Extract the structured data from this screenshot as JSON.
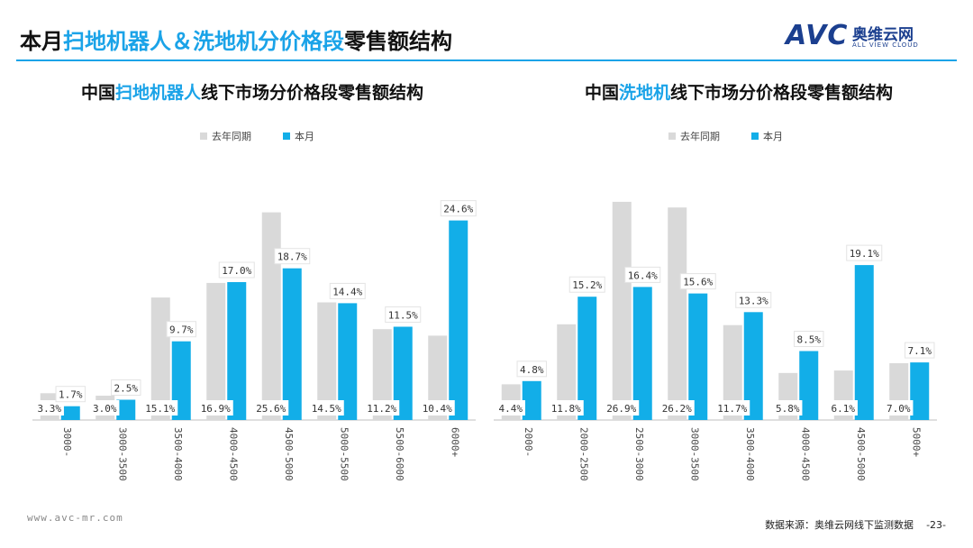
{
  "page": {
    "title_prefix": "本月",
    "title_highlight": "扫地机器人＆洗地机分价格段",
    "title_suffix": "零售额结构",
    "logo_mark": "AVC",
    "logo_cn": "奥维云网",
    "logo_en": "ALL VIEW CLOUD",
    "footer_url": "www.avc-mr.com",
    "footer_source": "数据来源：奥维云网线下监测数据",
    "page_number": "-23-"
  },
  "colors": {
    "accent": "#1aa3e8",
    "last_year": "#d9d9d9",
    "this_month": "#12aee8"
  },
  "chart_data": [
    {
      "type": "bar",
      "title_prefix": "中国",
      "title_highlight": "扫地机器人",
      "title_suffix": "线下市场分价格段零售额结构",
      "categories": [
        "3000-",
        "3000-3500",
        "3500-4000",
        "4000-4500",
        "4500-5000",
        "5000-5500",
        "5500-6000",
        "6000+"
      ],
      "series": [
        {
          "name": "去年同期",
          "values": [
            3.3,
            3.0,
            15.1,
            16.9,
            25.6,
            14.5,
            11.2,
            10.4
          ],
          "labels": [
            "3.3%",
            "3.0%",
            "15.1%",
            "16.9%",
            "25.6%",
            "14.5%",
            "11.2%",
            "10.4%"
          ]
        },
        {
          "name": "本月",
          "values": [
            1.7,
            2.5,
            9.7,
            17.0,
            18.7,
            14.4,
            11.5,
            24.6
          ],
          "labels": [
            "1.7%",
            "2.5%",
            "9.7%",
            "17.0%",
            "18.7%",
            "14.4%",
            "11.5%",
            "24.6%"
          ]
        }
      ],
      "ylim": [
        0,
        28
      ],
      "legend": "top-center"
    },
    {
      "type": "bar",
      "title_prefix": "中国",
      "title_highlight": "洗地机",
      "title_suffix": "线下市场分价格段零售额结构",
      "categories": [
        "2000-",
        "2000-2500",
        "2500-3000",
        "3000-3500",
        "3500-4000",
        "4000-4500",
        "4500-5000",
        "5000+"
      ],
      "series": [
        {
          "name": "去年同期",
          "values": [
            4.4,
            11.8,
            26.9,
            26.2,
            11.7,
            5.8,
            6.1,
            7.0
          ],
          "labels": [
            "4.4%",
            "11.8%",
            "26.9%",
            "26.2%",
            "11.7%",
            "5.8%",
            "6.1%",
            "7.0%"
          ]
        },
        {
          "name": "本月",
          "values": [
            4.8,
            15.2,
            16.4,
            15.6,
            13.3,
            8.5,
            19.1,
            7.1
          ],
          "labels": [
            "4.8%",
            "15.2%",
            "16.4%",
            "15.6%",
            "13.3%",
            "8.5%",
            "19.1%",
            "7.1%"
          ]
        }
      ],
      "ylim": [
        0,
        28
      ],
      "legend": "top-center"
    }
  ]
}
